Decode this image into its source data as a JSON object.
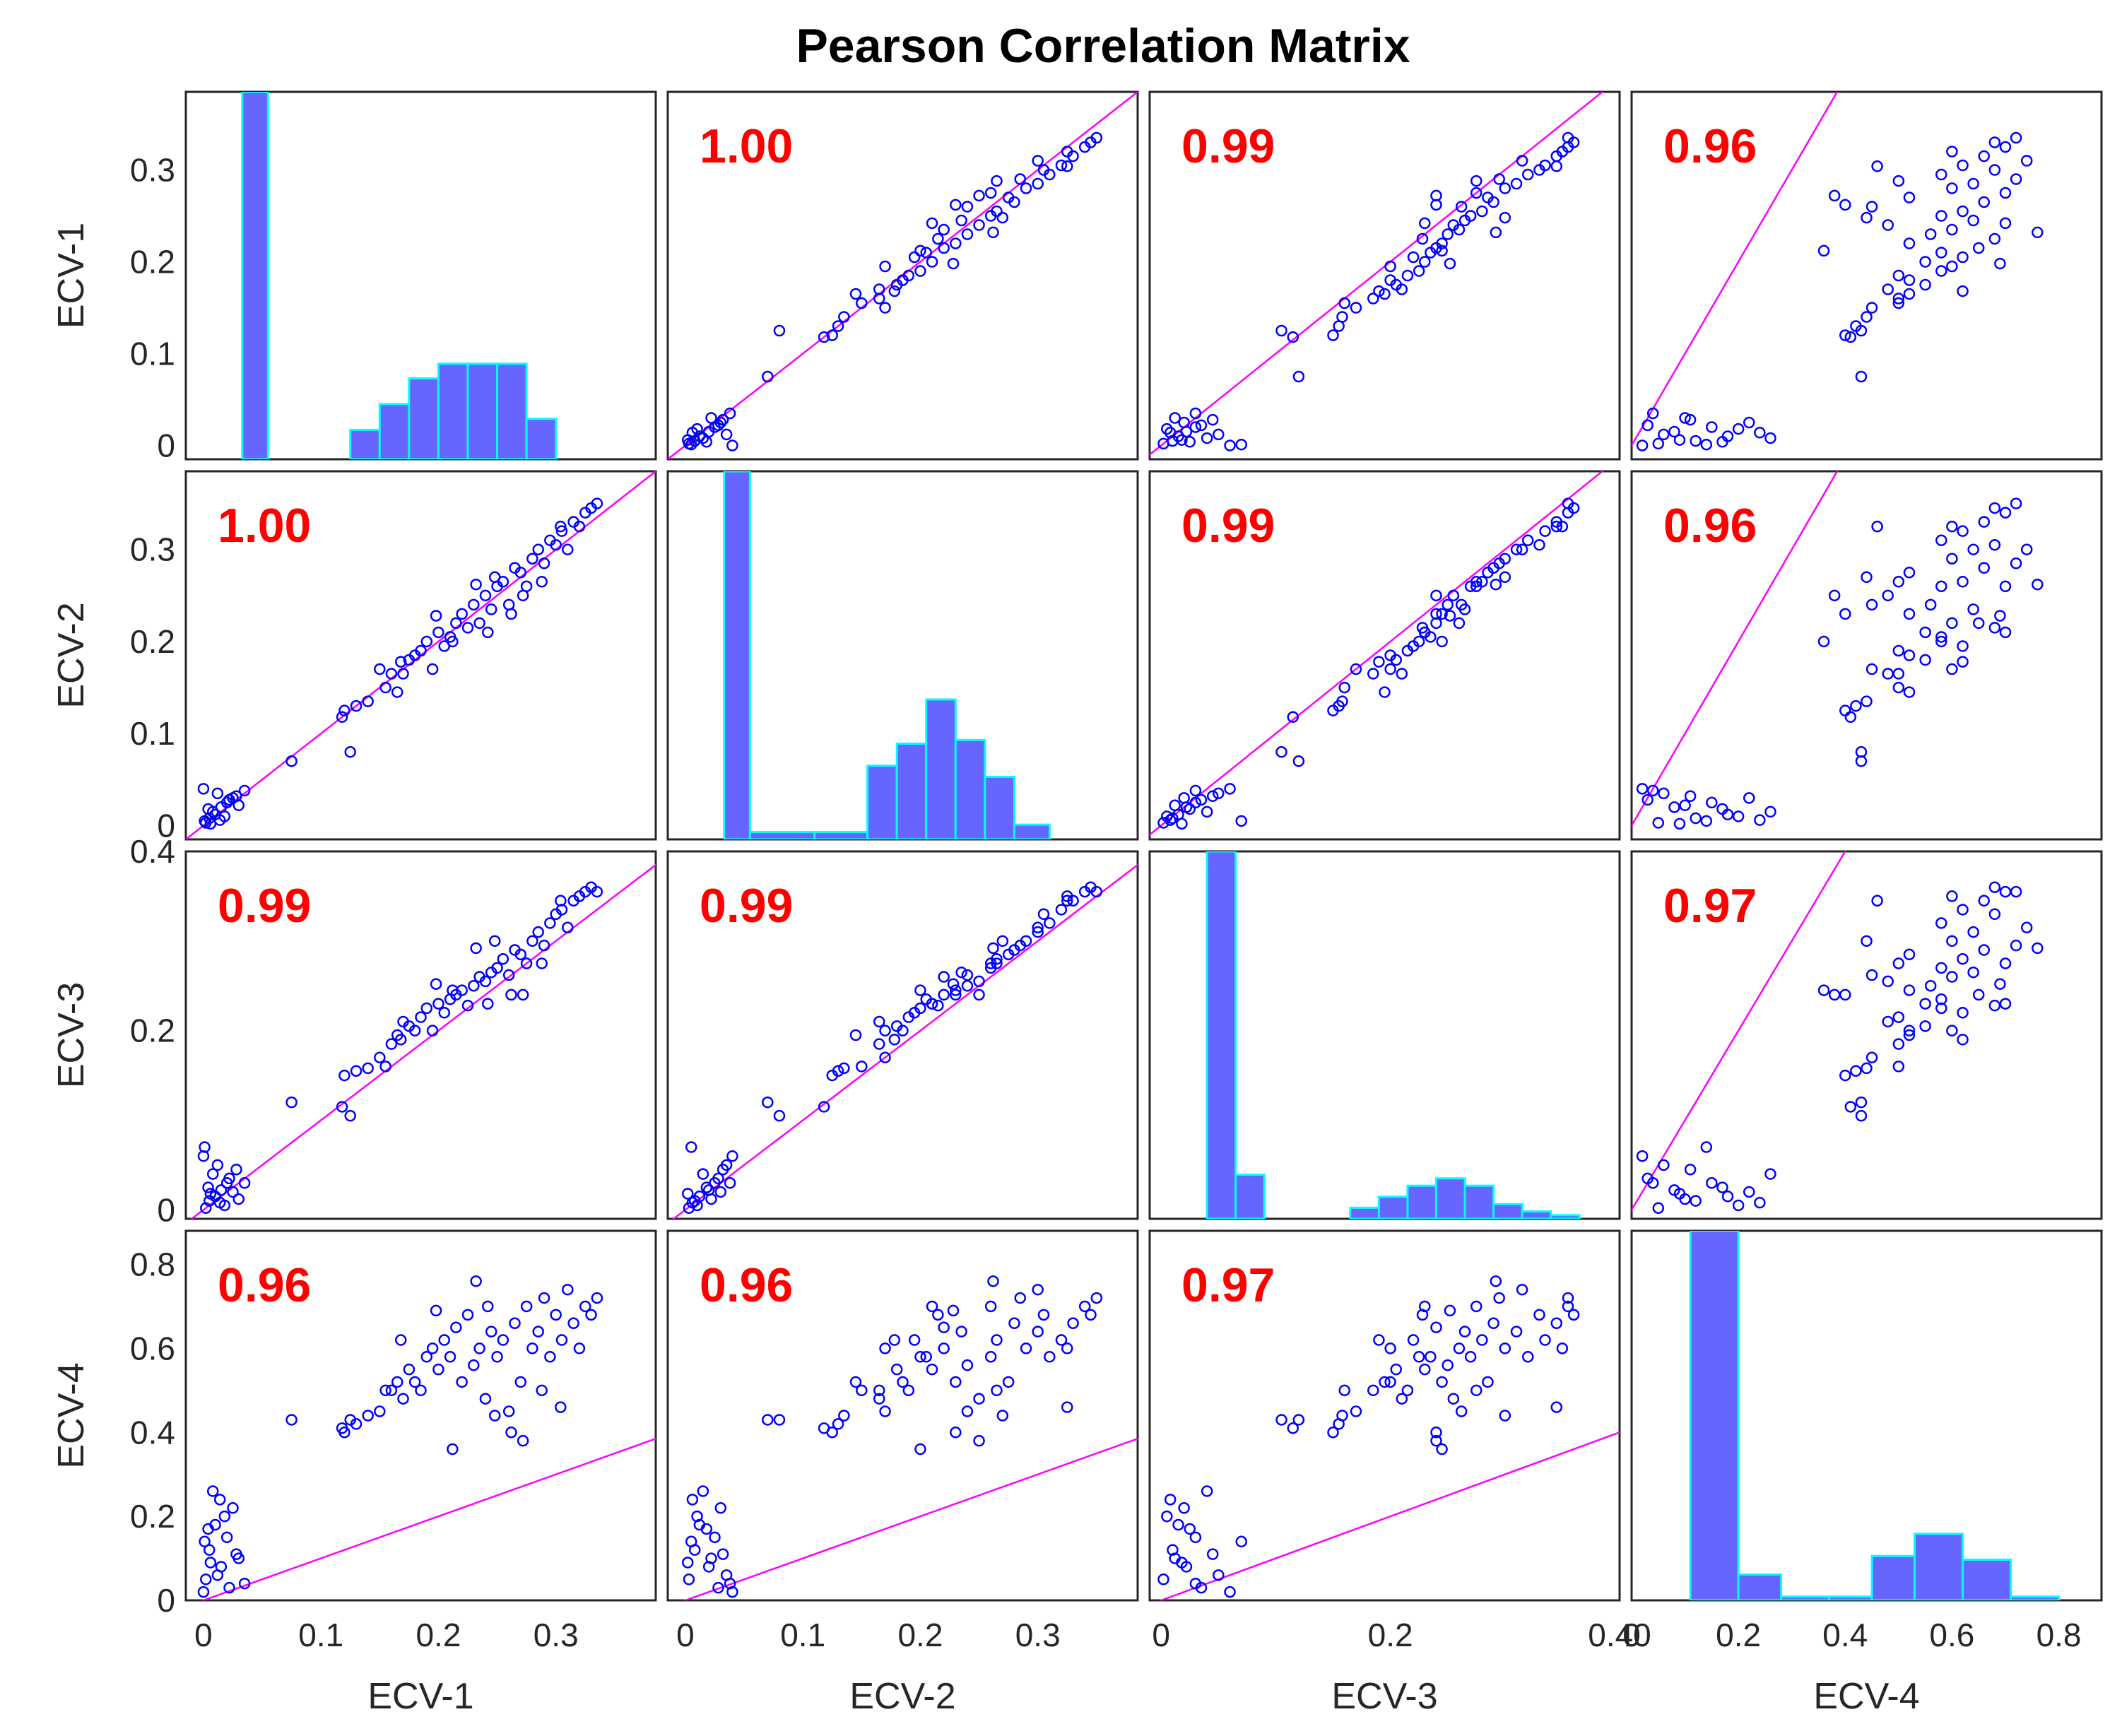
{
  "chart_data": {
    "type": "scatter-matrix",
    "title": "Pearson Correlation Matrix",
    "variables": [
      "ECV-1",
      "ECV-2",
      "ECV-3",
      "ECV-4"
    ],
    "axes": [
      {
        "name": "ECV-1",
        "lim": [
          -0.015,
          0.385
        ],
        "ticks": [
          0,
          0.1,
          0.2,
          0.3
        ],
        "tick_labels": [
          "0",
          "0.1",
          "0.2",
          "0.3"
        ]
      },
      {
        "name": "ECV-2",
        "lim": [
          -0.015,
          0.385
        ],
        "ticks": [
          0,
          0.1,
          0.2,
          0.3
        ],
        "tick_labels": [
          "0",
          "0.1",
          "0.2",
          "0.3"
        ]
      },
      {
        "name": "ECV-3",
        "lim": [
          -0.01,
          0.4
        ],
        "ticks": [
          0,
          0.2,
          0.4
        ],
        "tick_labels": [
          "0",
          "0.2",
          "0.40"
        ],
        "y_tick_labels": [
          "0",
          "0.2",
          "0.4"
        ]
      },
      {
        "name": "ECV-4",
        "lim": [
          0,
          0.88
        ],
        "ticks": [
          0,
          0.2,
          0.4,
          0.6,
          0.8
        ],
        "tick_labels": [
          "0",
          "0.2",
          "0.4",
          "0.6",
          "0.8"
        ]
      }
    ],
    "correlation_matrix": [
      [
        null,
        "1.00",
        "0.99",
        "0.96"
      ],
      [
        "1.00",
        null,
        "0.99",
        "0.96"
      ],
      [
        "0.99",
        "0.99",
        null,
        "0.97"
      ],
      [
        "0.96",
        "0.96",
        "0.97",
        null
      ]
    ],
    "histograms": [
      {
        "variable": "ECV-1",
        "bins": [
          [
            0.033,
            0.055,
            1.0
          ],
          [
            0.125,
            0.15,
            0.08
          ],
          [
            0.15,
            0.175,
            0.15
          ],
          [
            0.175,
            0.2,
            0.22
          ],
          [
            0.2,
            0.225,
            0.26
          ],
          [
            0.225,
            0.25,
            0.26
          ],
          [
            0.25,
            0.275,
            0.26
          ],
          [
            0.275,
            0.3,
            0.11
          ]
        ]
      },
      {
        "variable": "ECV-2",
        "bins": [
          [
            0.033,
            0.055,
            1.0
          ],
          [
            0.055,
            0.11,
            0.02
          ],
          [
            0.11,
            0.155,
            0.02
          ],
          [
            0.155,
            0.18,
            0.2
          ],
          [
            0.18,
            0.205,
            0.26
          ],
          [
            0.205,
            0.23,
            0.38
          ],
          [
            0.23,
            0.255,
            0.27
          ],
          [
            0.255,
            0.28,
            0.17
          ],
          [
            0.28,
            0.31,
            0.04
          ]
        ]
      },
      {
        "variable": "ECV-3",
        "bins": [
          [
            0.04,
            0.065,
            1.0
          ],
          [
            0.065,
            0.09,
            0.12
          ],
          [
            0.165,
            0.19,
            0.03
          ],
          [
            0.19,
            0.215,
            0.06
          ],
          [
            0.215,
            0.24,
            0.09
          ],
          [
            0.24,
            0.265,
            0.11
          ],
          [
            0.265,
            0.29,
            0.09
          ],
          [
            0.29,
            0.315,
            0.04
          ],
          [
            0.315,
            0.34,
            0.02
          ],
          [
            0.34,
            0.365,
            0.01
          ]
        ]
      },
      {
        "variable": "ECV-4",
        "bins": [
          [
            0.11,
            0.2,
            1.0
          ],
          [
            0.2,
            0.28,
            0.07
          ],
          [
            0.28,
            0.37,
            0.01
          ],
          [
            0.37,
            0.45,
            0.01
          ],
          [
            0.45,
            0.53,
            0.12
          ],
          [
            0.53,
            0.62,
            0.18
          ],
          [
            0.62,
            0.71,
            0.11
          ],
          [
            0.71,
            0.8,
            0.01
          ]
        ]
      }
    ],
    "scatter_series": {
      "note": "Representative sampled (ECV-1, ECV-2, ECV-3, ECV-4) observations read from the scatter panels",
      "columns": [
        "ECV-1",
        "ECV-2",
        "ECV-3",
        "ECV-4"
      ],
      "points": [
        [
          0.002,
          0.003,
          0.002,
          0.05
        ],
        [
          0.005,
          0.008,
          0.01,
          0.12
        ],
        [
          0.01,
          0.012,
          0.015,
          0.18
        ],
        [
          0.015,
          0.02,
          0.022,
          0.08
        ],
        [
          0.02,
          0.025,
          0.03,
          0.15
        ],
        [
          0.025,
          0.03,
          0.02,
          0.22
        ],
        [
          0.0,
          0.04,
          0.06,
          0.02
        ],
        [
          0.008,
          0.015,
          0.04,
          0.26
        ],
        [
          0.03,
          0.022,
          0.012,
          0.1
        ],
        [
          0.012,
          0.035,
          0.05,
          0.06
        ],
        [
          0.001,
          0.005,
          0.07,
          0.14
        ],
        [
          0.018,
          0.01,
          0.005,
          0.2
        ],
        [
          0.022,
          0.028,
          0.035,
          0.03
        ],
        [
          0.004,
          0.018,
          0.025,
          0.17
        ],
        [
          0.028,
          0.032,
          0.045,
          0.11
        ],
        [
          0.035,
          0.038,
          0.03,
          0.04
        ],
        [
          0.006,
          0.002,
          0.018,
          0.09
        ],
        [
          0.014,
          0.006,
          0.008,
          0.24
        ],
        [
          0.075,
          0.07,
          0.12,
          0.43
        ],
        [
          0.118,
          0.118,
          0.115,
          0.41
        ],
        [
          0.12,
          0.125,
          0.15,
          0.4
        ],
        [
          0.125,
          0.08,
          0.105,
          0.43
        ],
        [
          0.13,
          0.13,
          0.155,
          0.42
        ],
        [
          0.14,
          0.135,
          0.158,
          0.44
        ],
        [
          0.15,
          0.17,
          0.17,
          0.45
        ],
        [
          0.155,
          0.15,
          0.16,
          0.5
        ],
        [
          0.16,
          0.165,
          0.185,
          0.5
        ],
        [
          0.165,
          0.145,
          0.195,
          0.52
        ],
        [
          0.17,
          0.165,
          0.21,
          0.48
        ],
        [
          0.175,
          0.18,
          0.205,
          0.55
        ],
        [
          0.18,
          0.185,
          0.2,
          0.52
        ],
        [
          0.185,
          0.19,
          0.215,
          0.5
        ],
        [
          0.19,
          0.2,
          0.225,
          0.58
        ],
        [
          0.195,
          0.17,
          0.2,
          0.6
        ],
        [
          0.2,
          0.21,
          0.23,
          0.55
        ],
        [
          0.205,
          0.195,
          0.22,
          0.62
        ],
        [
          0.21,
          0.205,
          0.235,
          0.58
        ],
        [
          0.215,
          0.22,
          0.24,
          0.65
        ],
        [
          0.22,
          0.23,
          0.245,
          0.52
        ],
        [
          0.225,
          0.215,
          0.228,
          0.68
        ],
        [
          0.23,
          0.24,
          0.25,
          0.56
        ],
        [
          0.235,
          0.22,
          0.26,
          0.6
        ],
        [
          0.24,
          0.25,
          0.255,
          0.48
        ],
        [
          0.245,
          0.235,
          0.265,
          0.64
        ],
        [
          0.25,
          0.26,
          0.27,
          0.58
        ],
        [
          0.255,
          0.265,
          0.28,
          0.62
        ],
        [
          0.26,
          0.24,
          0.262,
          0.45
        ],
        [
          0.265,
          0.28,
          0.29,
          0.66
        ],
        [
          0.27,
          0.275,
          0.285,
          0.52
        ],
        [
          0.275,
          0.26,
          0.275,
          0.7
        ],
        [
          0.28,
          0.29,
          0.3,
          0.6
        ],
        [
          0.285,
          0.3,
          0.31,
          0.64
        ],
        [
          0.29,
          0.285,
          0.295,
          0.72
        ],
        [
          0.295,
          0.31,
          0.32,
          0.58
        ],
        [
          0.3,
          0.305,
          0.33,
          0.68
        ],
        [
          0.305,
          0.32,
          0.335,
          0.62
        ],
        [
          0.31,
          0.3,
          0.315,
          0.74
        ],
        [
          0.315,
          0.33,
          0.345,
          0.66
        ],
        [
          0.32,
          0.325,
          0.35,
          0.6
        ],
        [
          0.325,
          0.34,
          0.355,
          0.7
        ],
        [
          0.33,
          0.345,
          0.36,
          0.68
        ],
        [
          0.335,
          0.35,
          0.355,
          0.72
        ],
        [
          0.262,
          0.23,
          0.24,
          0.4
        ],
        [
          0.248,
          0.27,
          0.3,
          0.44
        ],
        [
          0.212,
          0.2,
          0.245,
          0.36
        ],
        [
          0.272,
          0.25,
          0.24,
          0.38
        ],
        [
          0.232,
          0.262,
          0.292,
          0.76
        ],
        [
          0.288,
          0.265,
          0.275,
          0.5
        ],
        [
          0.198,
          0.228,
          0.252,
          0.69
        ],
        [
          0.304,
          0.325,
          0.345,
          0.46
        ],
        [
          0.168,
          0.178,
          0.19,
          0.62
        ],
        [
          0.242,
          0.21,
          0.23,
          0.7
        ]
      ]
    },
    "reference_line": "y = x",
    "marker_color": "#0000ff",
    "histogram_fill": "#6666ff",
    "histogram_edge": "#00ffff",
    "reference_line_color": "#ff00ff",
    "correlation_text_color": "#ff0000"
  }
}
